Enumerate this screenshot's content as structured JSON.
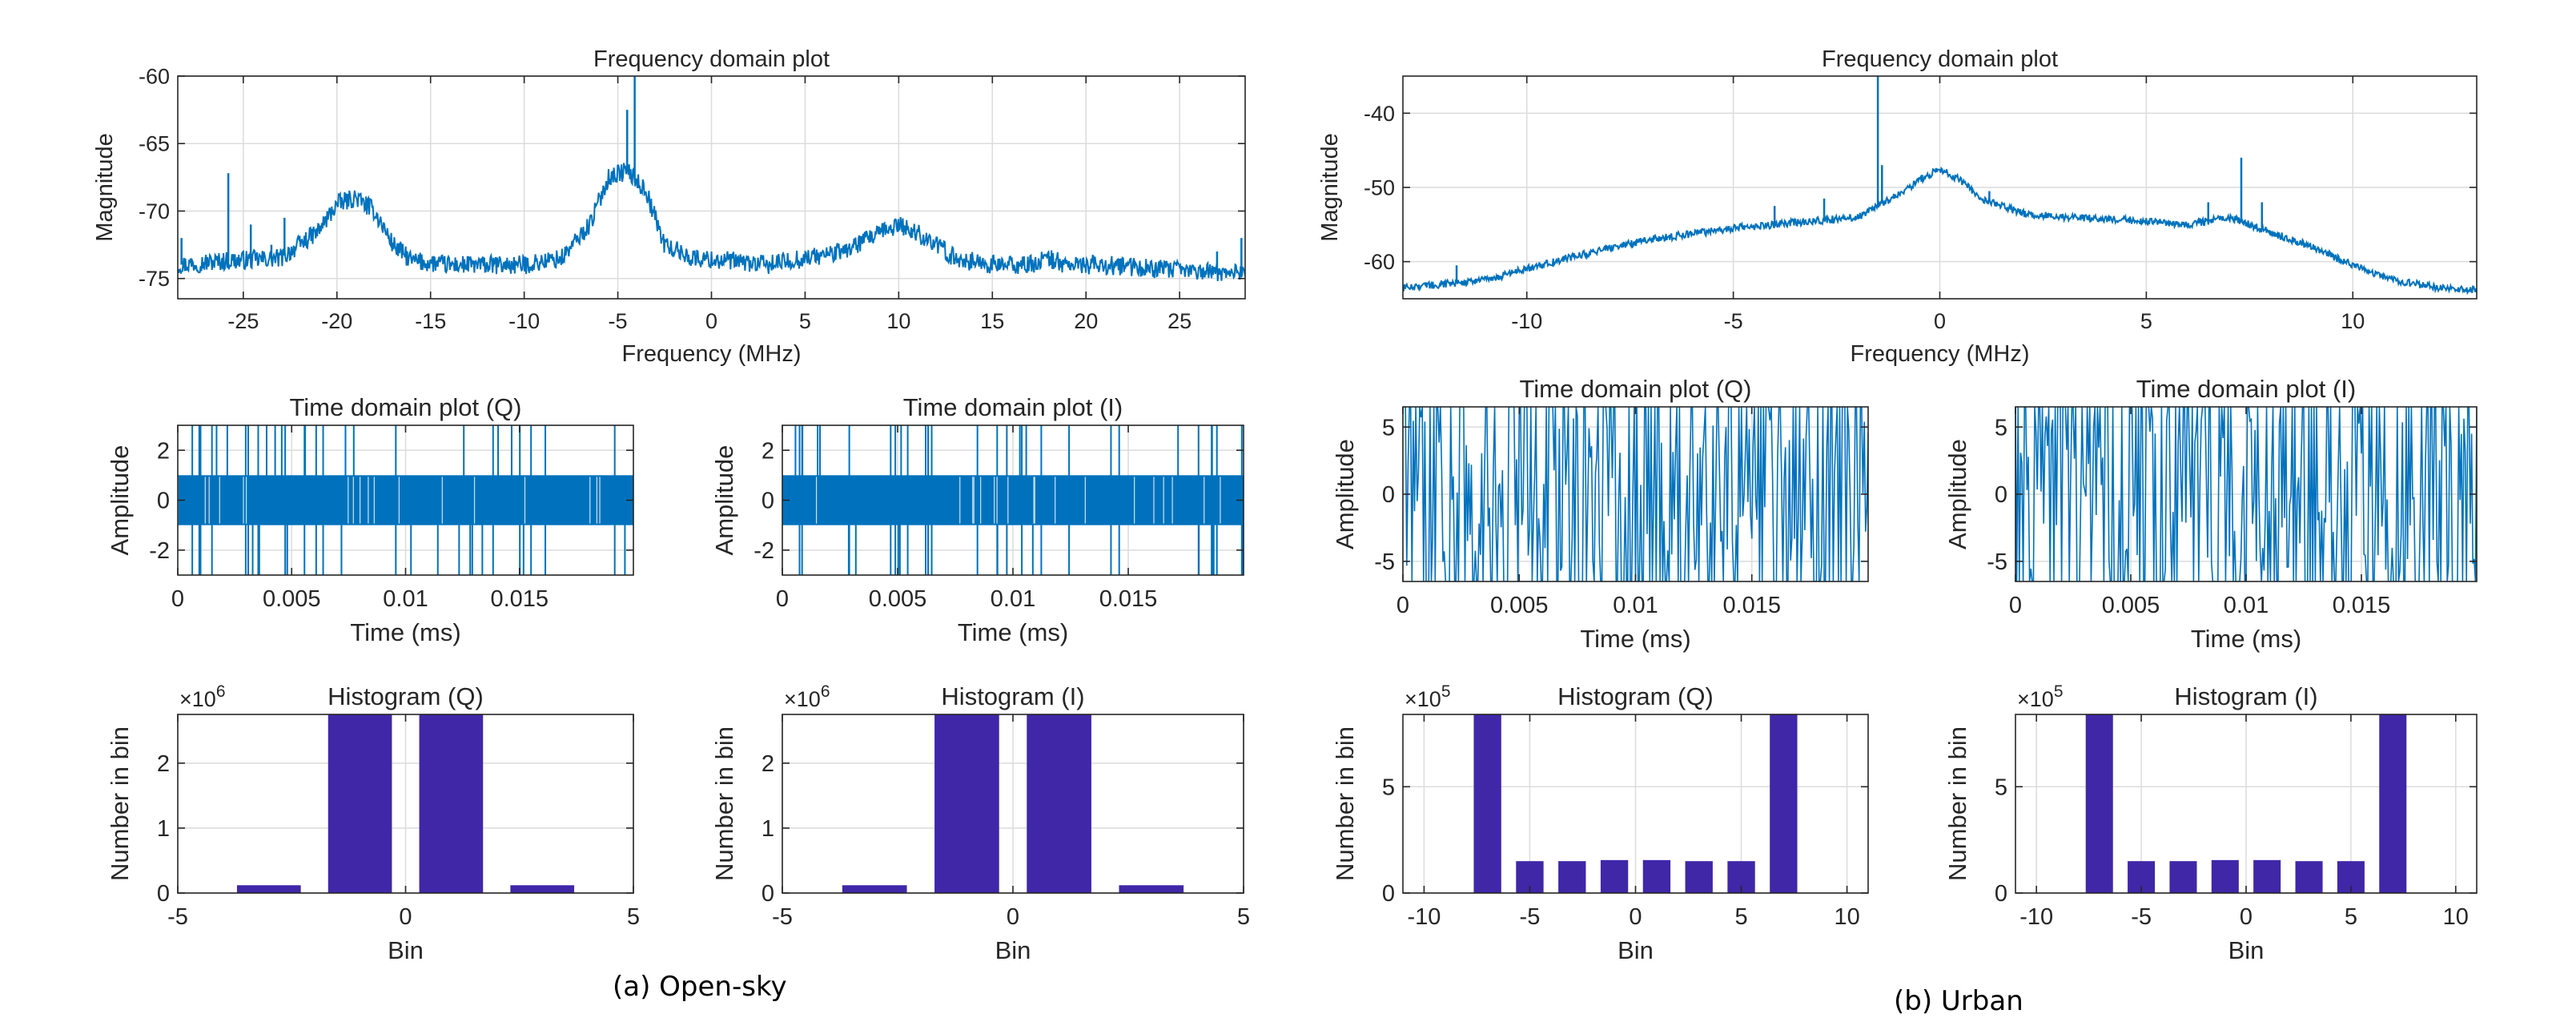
{
  "panels": [
    {
      "caption": "(a) Open-sky"
    },
    {
      "caption": "(b) Urban"
    }
  ],
  "colors": {
    "line": "#0072BD",
    "bar": "#3f27a8",
    "grid": "#dcdcdc",
    "axis": "#262626"
  },
  "chart_data": [
    {
      "id": "os_freq",
      "type": "line",
      "title": "Frequency domain plot",
      "xlabel": "Frequency (MHz)",
      "ylabel": "Magnitude",
      "xlim": [
        -28.5,
        28.5
      ],
      "ylim": [
        -76.5,
        -60
      ],
      "xticks": [
        -25,
        -20,
        -15,
        -10,
        -5,
        0,
        5,
        10,
        15,
        20,
        25
      ],
      "yticks": [
        -75,
        -70,
        -65,
        -60
      ],
      "grid": true,
      "series": [
        {
          "kind": "spectrum",
          "x": [
            -28.5,
            -26,
            -23,
            -21,
            -20,
            -19,
            -18,
            -17,
            -16,
            -14,
            -12,
            -10,
            -8,
            -6.5,
            -5.5,
            -4.5,
            -3.5,
            -2.5,
            -1,
            1,
            3,
            5,
            7,
            8.5,
            10,
            11.5,
            13,
            15,
            17,
            18,
            19,
            21,
            23,
            25,
            27,
            28.5
          ],
          "y": [
            -74,
            -73.7,
            -73.5,
            -71.5,
            -69.5,
            -69,
            -70,
            -72.5,
            -73.7,
            -74,
            -74,
            -74,
            -73.5,
            -71,
            -67.5,
            -67,
            -68.5,
            -72.5,
            -73.5,
            -73.7,
            -74,
            -73.5,
            -73,
            -72,
            -71,
            -72,
            -73.5,
            -74,
            -74,
            -73.5,
            -74,
            -74,
            -74.2,
            -74.4,
            -74.5,
            -74.5
          ],
          "noise": 0.7,
          "floor": -76.5,
          "spikes": [
            [
              -28.3,
              -72
            ],
            [
              -25.8,
              -67.2
            ],
            [
              -24.6,
              -71
            ],
            [
              -23.5,
              -72.5
            ],
            [
              -22.8,
              -70.5
            ],
            [
              -16.5,
              -72.5
            ],
            [
              -4.5,
              -62.5
            ],
            [
              -4.1,
              -60
            ],
            [
              18,
              -73
            ],
            [
              27,
              -73
            ],
            [
              28.3,
              -72
            ]
          ]
        }
      ]
    },
    {
      "id": "urb_freq",
      "type": "line",
      "title": "Frequency domain plot",
      "xlabel": "Frequency (MHz)",
      "ylabel": "Magnitude",
      "xlim": [
        -13,
        13
      ],
      "ylim": [
        -65,
        -35
      ],
      "xticks": [
        -10,
        -5,
        0,
        5,
        10
      ],
      "yticks": [
        -60,
        -50,
        -40
      ],
      "grid": true,
      "series": [
        {
          "kind": "spectrum",
          "x": [
            -13,
            -11,
            -9,
            -7,
            -5,
            -3,
            -2,
            -1,
            -0.5,
            0,
            0.5,
            1,
            2,
            3,
            5,
            6,
            7,
            8,
            9,
            10,
            11,
            12,
            13
          ],
          "y": [
            -63.5,
            -62.5,
            -59.5,
            -57,
            -55.5,
            -54.5,
            -54,
            -51,
            -49,
            -47.5,
            -49,
            -51.5,
            -53.5,
            -54,
            -54.5,
            -55,
            -54,
            -56,
            -58,
            -60.5,
            -62.5,
            -63.5,
            -63.8
          ],
          "noise": 0.5,
          "floor": -65,
          "spikes": [
            [
              -11.7,
              -60.5
            ],
            [
              -8.4,
              -58.5
            ],
            [
              -4,
              -52.5
            ],
            [
              -2.8,
              -51.5
            ],
            [
              -1.5,
              -35
            ],
            [
              -1.4,
              -47
            ],
            [
              1.2,
              -50.5
            ],
            [
              6.5,
              -52
            ],
            [
              7.3,
              -46
            ],
            [
              7.8,
              -52
            ]
          ]
        }
      ]
    },
    {
      "id": "os_tq",
      "type": "line",
      "title": "Time domain plot (Q)",
      "xlabel": "Time (ms)",
      "ylabel": "Amplitude",
      "xlim": [
        0,
        0.02
      ],
      "ylim": [
        -3,
        3
      ],
      "xticks": [
        0,
        0.005,
        0.01,
        0.015
      ],
      "xticklabels": [
        "0",
        "0.005",
        "0.01",
        "0.015"
      ],
      "yticks": [
        -2,
        0,
        2
      ],
      "grid": true,
      "series": [
        {
          "kind": "time",
          "levels": [
            -1,
            1
          ],
          "outer": [
            -3,
            3
          ],
          "seed": 11,
          "count": 40
        }
      ]
    },
    {
      "id": "os_ti",
      "type": "line",
      "title": "Time domain plot (I)",
      "xlabel": "Time (ms)",
      "ylabel": "Amplitude",
      "xlim": [
        0,
        0.02
      ],
      "ylim": [
        -3,
        3
      ],
      "xticks": [
        0,
        0.005,
        0.01,
        0.015
      ],
      "xticklabels": [
        "0",
        "0.005",
        "0.01",
        "0.015"
      ],
      "yticks": [
        -2,
        0,
        2
      ],
      "grid": true,
      "series": [
        {
          "kind": "time",
          "levels": [
            -1,
            1
          ],
          "outer": [
            -3,
            3
          ],
          "seed": 23,
          "count": 40
        }
      ]
    },
    {
      "id": "urb_tq",
      "type": "line",
      "title": "Time domain plot (Q)",
      "xlabel": "Time (ms)",
      "ylabel": "Amplitude",
      "xlim": [
        0,
        0.02
      ],
      "ylim": [
        -6.5,
        6.5
      ],
      "xticks": [
        0,
        0.005,
        0.01,
        0.015
      ],
      "xticklabels": [
        "0",
        "0.005",
        "0.01",
        "0.015"
      ],
      "yticks": [
        -5,
        0,
        5
      ],
      "grid": true,
      "series": [
        {
          "kind": "random",
          "amp": 6.5,
          "seed": 31,
          "count": 360
        }
      ]
    },
    {
      "id": "urb_ti",
      "type": "line",
      "title": "Time domain plot (I)",
      "xlabel": "Time (ms)",
      "ylabel": "Amplitude",
      "xlim": [
        0,
        0.02
      ],
      "ylim": [
        -6.5,
        6.5
      ],
      "xticks": [
        0,
        0.005,
        0.01,
        0.015
      ],
      "xticklabels": [
        "0",
        "0.005",
        "0.01",
        "0.015"
      ],
      "yticks": [
        -5,
        0,
        5
      ],
      "grid": true,
      "series": [
        {
          "kind": "random",
          "amp": 6.5,
          "seed": 47,
          "count": 360
        }
      ]
    },
    {
      "id": "os_hq",
      "type": "bar",
      "title": "Histogram (Q)",
      "xlabel": "Bin",
      "ylabel": "Number in bin",
      "exponent": "×10^6",
      "xlim": [
        -5,
        5
      ],
      "ylim": [
        0,
        2.75
      ],
      "xticks": [
        -5,
        0,
        5
      ],
      "yticks": [
        0,
        1,
        2
      ],
      "grid": true,
      "barwidth": 1.4,
      "x": [
        -3,
        -1,
        1,
        3
      ],
      "values": [
        0.12,
        2.75,
        2.75,
        0.12
      ]
    },
    {
      "id": "os_hi",
      "type": "bar",
      "title": "Histogram (I)",
      "xlabel": "Bin",
      "ylabel": "Number in bin",
      "exponent": "×10^6",
      "xlim": [
        -5,
        5
      ],
      "ylim": [
        0,
        2.75
      ],
      "xticks": [
        -5,
        0,
        5
      ],
      "yticks": [
        0,
        1,
        2
      ],
      "grid": true,
      "barwidth": 1.4,
      "x": [
        -3,
        -1,
        1,
        3
      ],
      "values": [
        0.12,
        2.75,
        2.75,
        0.12
      ]
    },
    {
      "id": "urb_hq",
      "type": "bar",
      "title": "Histogram (Q)",
      "xlabel": "Bin",
      "ylabel": "Number in bin",
      "exponent": "×10^5",
      "xlim": [
        -11,
        11
      ],
      "ylim": [
        0,
        8.4
      ],
      "xticks": [
        -10,
        -5,
        0,
        5,
        10
      ],
      "yticks": [
        0,
        5
      ],
      "grid": true,
      "barwidth": 1.3,
      "x": [
        -7,
        -5,
        -3,
        -1,
        1,
        3,
        5,
        7
      ],
      "values": [
        8.4,
        1.5,
        1.5,
        1.55,
        1.55,
        1.5,
        1.5,
        8.4
      ]
    },
    {
      "id": "urb_hi",
      "type": "bar",
      "title": "Histogram (I)",
      "xlabel": "Bin",
      "ylabel": "Number in bin",
      "exponent": "×10^5",
      "xlim": [
        -11,
        11
      ],
      "ylim": [
        0,
        8.4
      ],
      "xticks": [
        -10,
        -5,
        0,
        5,
        10
      ],
      "yticks": [
        0,
        5
      ],
      "grid": true,
      "barwidth": 1.3,
      "x": [
        -7,
        -5,
        -3,
        -1,
        1,
        3,
        5,
        7
      ],
      "values": [
        8.4,
        1.5,
        1.5,
        1.55,
        1.55,
        1.5,
        1.5,
        8.4
      ]
    }
  ]
}
